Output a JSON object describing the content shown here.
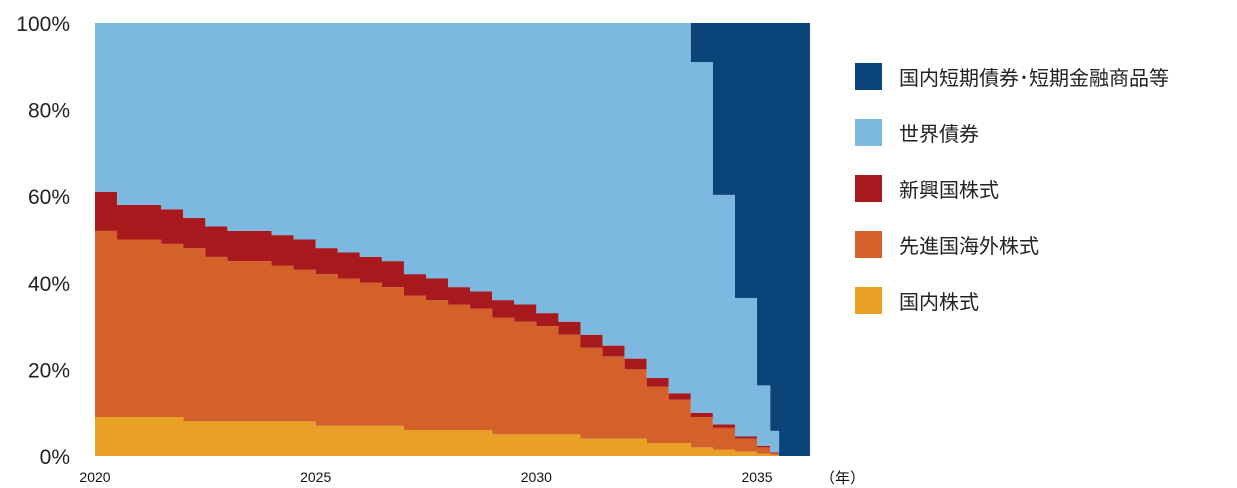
{
  "chart_data": {
    "type": "area",
    "stacked": true,
    "y_format": "percent",
    "ylim": [
      0,
      100
    ],
    "yticks": [
      "0%",
      "20%",
      "40%",
      "60%",
      "80%",
      "100%"
    ],
    "xlim": [
      2020,
      2036.2
    ],
    "xticks": [
      "2020",
      "2025",
      "2030",
      "2035"
    ],
    "x_unit_label": "（年）",
    "x": [
      2020,
      2020.5,
      2021,
      2021.5,
      2022,
      2022.5,
      2023,
      2023.5,
      2024,
      2024.5,
      2025,
      2025.5,
      2026,
      2026.5,
      2027,
      2027.5,
      2028,
      2028.5,
      2029,
      2029.5,
      2030,
      2030.5,
      2031,
      2031.5,
      2032,
      2032.5,
      2033,
      2033.5,
      2034,
      2034.5,
      2035,
      2035.3,
      2035.5,
      2036.2
    ],
    "series": [
      {
        "name": "国内株式",
        "color": "#E8A125",
        "values": [
          9,
          9,
          9,
          9,
          8,
          8,
          8,
          8,
          8,
          8,
          7,
          7,
          7,
          7,
          6,
          6,
          6,
          6,
          5,
          5,
          5,
          5,
          4,
          4,
          4,
          3,
          3,
          2,
          1.5,
          1,
          0.5,
          0.2,
          0,
          0
        ]
      },
      {
        "name": "先進国海外株式",
        "color": "#D4602A",
        "values": [
          43,
          41,
          41,
          40,
          40,
          38,
          37,
          37,
          36,
          35,
          35,
          34,
          33,
          32,
          31,
          30,
          29,
          28,
          27,
          26,
          25,
          23,
          21,
          19,
          16,
          13,
          10,
          7,
          5,
          3,
          1.5,
          0.5,
          0,
          0
        ]
      },
      {
        "name": "新興国株式",
        "color": "#A7191D",
        "values": [
          9,
          8,
          8,
          8,
          7,
          7,
          7,
          7,
          7,
          7,
          6,
          6,
          6,
          6,
          5,
          5,
          4,
          4,
          4,
          4,
          3,
          3,
          3,
          2.5,
          2.5,
          2,
          1.5,
          1,
          0.8,
          0.5,
          0.3,
          0.1,
          0,
          0
        ]
      },
      {
        "name": "世界債券",
        "color": "#7DB8E0",
        "values": [
          39,
          42,
          42,
          43,
          45,
          47,
          48,
          48,
          49,
          50,
          52,
          53,
          54,
          55,
          58,
          59,
          61,
          62,
          64,
          65,
          67,
          69,
          72,
          74.5,
          77.5,
          82,
          85.5,
          81,
          53,
          32,
          14,
          5,
          0,
          0
        ]
      },
      {
        "name": "国内短期債券･短期金融商品等",
        "color": "#0A4478",
        "values": [
          0,
          0,
          0,
          0,
          0,
          0,
          0,
          0,
          0,
          0,
          0,
          0,
          0,
          0,
          0,
          0,
          0,
          0,
          0,
          0,
          0,
          0,
          0,
          0,
          0,
          0,
          0,
          9,
          39.7,
          63.5,
          83.7,
          94.2,
          100,
          100
        ]
      }
    ]
  },
  "legend_order": [
    4,
    3,
    2,
    1,
    0
  ]
}
